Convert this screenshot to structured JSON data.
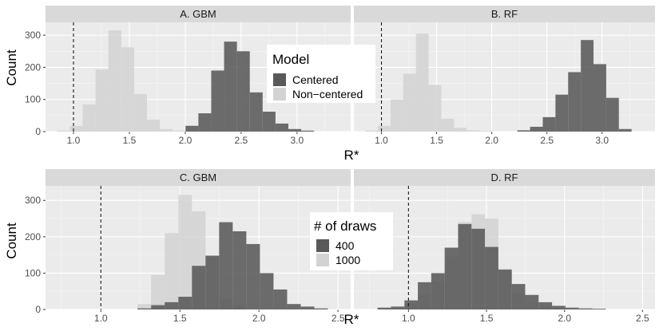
{
  "chart_data": {
    "type": "bar",
    "figure": {
      "top": {
        "xlabel": "R*",
        "ylabel": "Count",
        "legend": {
          "title": "Model",
          "position": "center",
          "entries": [
            {
              "label": "Centered",
              "color": "#595959"
            },
            {
              "label": "Non−centered",
              "color": "#d3d3d3"
            }
          ]
        }
      },
      "bottom": {
        "xlabel": "R*",
        "ylabel": "Count",
        "legend": {
          "title": "# of draws",
          "position": "center",
          "entries": [
            {
              "label": "400",
              "color": "#595959"
            },
            {
              "label": "1000",
              "color": "#d3d3d3"
            }
          ]
        }
      }
    },
    "panels": [
      {
        "key": "A",
        "title": "A. GBM",
        "xlim": [
          0.75,
          3.48
        ],
        "ylim": [
          0,
          340
        ],
        "grid": true,
        "xticks": [
          1.0,
          1.5,
          2.0,
          2.5,
          3.0
        ],
        "xtick_labels": [
          "1.0",
          "1.5",
          "2.0",
          "2.5",
          "3.0"
        ],
        "yticks": [
          0,
          100,
          200,
          300
        ],
        "ref_line": 1.0,
        "bin_width": 0.115,
        "series": [
          {
            "name": "Non−centered",
            "color": "#d3d3d3",
            "x": [
              0.91,
              1.025,
              1.14,
              1.255,
              1.37,
              1.485,
              1.6,
              1.715,
              1.83,
              1.945
            ],
            "values": [
              3,
              18,
              85,
              193,
              315,
              262,
              117,
              37,
              8,
              3
            ]
          },
          {
            "name": "Centered",
            "color": "#595959",
            "x": [
              2.06,
              2.175,
              2.29,
              2.405,
              2.52,
              2.635,
              2.75,
              2.865,
              2.98,
              3.095
            ],
            "values": [
              18,
              57,
              190,
              280,
              250,
              122,
              62,
              25,
              8,
              3
            ]
          }
        ]
      },
      {
        "key": "B",
        "title": "B. RF",
        "xlim": [
          0.75,
          3.48
        ],
        "ylim": [
          0,
          340
        ],
        "grid": true,
        "xticks": [
          1.0,
          1.5,
          2.0,
          2.5,
          3.0
        ],
        "xtick_labels": [
          "1.0",
          "1.5",
          "2.0",
          "2.5",
          "3.0"
        ],
        "yticks": [
          0,
          100,
          200,
          300
        ],
        "ref_line": 1.0,
        "bin_width": 0.115,
        "series": [
          {
            "name": "Non−centered",
            "color": "#d3d3d3",
            "x": [
              0.91,
              1.025,
              1.14,
              1.255,
              1.37,
              1.485,
              1.6,
              1.715,
              1.83,
              1.945
            ],
            "values": [
              3,
              18,
              100,
              180,
              305,
              145,
              40,
              12,
              4,
              2
            ]
          },
          {
            "name": "Centered",
            "color": "#595959",
            "x": [
              2.29,
              2.405,
              2.52,
              2.635,
              2.75,
              2.865,
              2.98,
              3.095,
              3.21
            ],
            "values": [
              4,
              15,
              45,
              115,
              185,
              285,
              210,
              105,
              8
            ]
          }
        ]
      },
      {
        "key": "C",
        "title": "C. GBM",
        "xlim": [
          0.65,
          2.58
        ],
        "ylim": [
          0,
          340
        ],
        "grid": true,
        "xticks": [
          1.0,
          1.5,
          2.0,
          2.5
        ],
        "xtick_labels": [
          "1.0",
          "1.5",
          "2.0",
          "2.5"
        ],
        "yticks": [
          0,
          100,
          200,
          300
        ],
        "ref_line": 1.0,
        "bin_width": 0.086,
        "series": [
          {
            "name": "1000",
            "color": "#d3d3d3",
            "x": [
              1.275,
              1.361,
              1.447,
              1.533,
              1.619,
              1.705,
              1.791,
              1.877
            ],
            "values": [
              15,
              95,
              210,
              315,
              270,
              145,
              30,
              12
            ]
          },
          {
            "name": "400",
            "color": "#595959",
            "x": [
              1.275,
              1.361,
              1.447,
              1.533,
              1.619,
              1.705,
              1.791,
              1.877,
              1.963,
              2.049,
              2.135,
              2.221,
              2.307,
              2.393
            ],
            "values": [
              3,
              12,
              20,
              35,
              120,
              148,
              240,
              215,
              180,
              100,
              55,
              15,
              8,
              3
            ]
          }
        ]
      },
      {
        "key": "D",
        "title": "D. RF",
        "xlim": [
          0.65,
          2.58
        ],
        "ylim": [
          0,
          340
        ],
        "grid": true,
        "xticks": [
          1.0,
          1.5,
          2.0,
          2.5
        ],
        "xtick_labels": [
          "1.0",
          "1.5",
          "2.0",
          "2.5"
        ],
        "yticks": [
          0,
          100,
          200,
          300
        ],
        "ref_line": 1.0,
        "bin_width": 0.086,
        "series": [
          {
            "name": "1000",
            "color": "#d3d3d3",
            "x": [
              0.845,
              0.931,
              1.017,
              1.103,
              1.189,
              1.275,
              1.361,
              1.447,
              1.533,
              1.619,
              1.705,
              1.791,
              1.877,
              1.963
            ],
            "values": [
              3,
              6,
              15,
              40,
              78,
              145,
              240,
              262,
              250,
              105,
              45,
              18,
              8,
              3
            ]
          },
          {
            "name": "400",
            "color": "#595959",
            "x": [
              0.845,
              0.931,
              1.017,
              1.103,
              1.189,
              1.275,
              1.361,
              1.447,
              1.533,
              1.619,
              1.705,
              1.791,
              1.877,
              1.963,
              2.049,
              2.135,
              2.221
            ],
            "values": [
              5,
              8,
              25,
              75,
              100,
              170,
              235,
              222,
              172,
              110,
              70,
              40,
              20,
              10,
              5,
              3,
              2
            ]
          }
        ]
      }
    ]
  }
}
